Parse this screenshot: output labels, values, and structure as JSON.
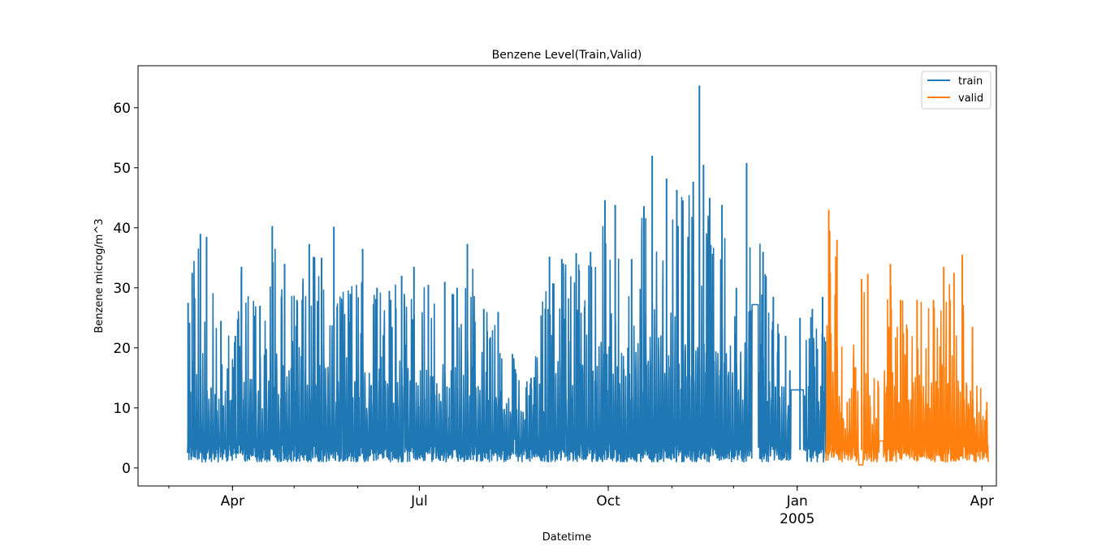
{
  "chart_data": {
    "type": "line",
    "title": "Benzene Level(Train,Valid)",
    "xlabel": "Datetime",
    "ylabel": "Benzene microg/m^3",
    "xlim": [
      "2004-02-15",
      "2005-04-08"
    ],
    "ylim": [
      -3,
      67
    ],
    "y_ticks": [
      0,
      10,
      20,
      30,
      40,
      50,
      60
    ],
    "x_ticks": [
      {
        "date": "2004-04-01",
        "label": "Apr",
        "sub": ""
      },
      {
        "date": "2004-07-01",
        "label": "Jul",
        "sub": ""
      },
      {
        "date": "2004-10-01",
        "label": "Oct",
        "sub": ""
      },
      {
        "date": "2005-01-01",
        "label": "Jan",
        "sub": "2005"
      },
      {
        "date": "2005-04-01",
        "label": "Apr",
        "sub": ""
      }
    ],
    "grid": false,
    "legend": "top-right",
    "series": [
      {
        "name": "train",
        "color": "#1f77b4",
        "start": "2004-03-10",
        "end": "2005-01-15",
        "peaks": [
          [
            "2004-03-10",
            27.5
          ],
          [
            "2004-03-12",
            32.5
          ],
          [
            "2004-03-16",
            39.0
          ],
          [
            "2004-03-19",
            38.5
          ],
          [
            "2004-03-26",
            24.5
          ],
          [
            "2004-04-02",
            22.0
          ],
          [
            "2004-04-05",
            33.5
          ],
          [
            "2004-04-14",
            27.0
          ],
          [
            "2004-04-20",
            40.3
          ],
          [
            "2004-04-26",
            34.0
          ],
          [
            "2004-05-02",
            28.0
          ],
          [
            "2004-05-08",
            37.3
          ],
          [
            "2004-05-14",
            35.0
          ],
          [
            "2004-05-20",
            40.2
          ],
          [
            "2004-05-28",
            29.0
          ],
          [
            "2004-06-03",
            36.5
          ],
          [
            "2004-06-10",
            30.0
          ],
          [
            "2004-06-16",
            29.5
          ],
          [
            "2004-06-22",
            32.0
          ],
          [
            "2004-06-28",
            33.5
          ],
          [
            "2004-07-05",
            30.5
          ],
          [
            "2004-07-13",
            31.0
          ],
          [
            "2004-07-19",
            30.0
          ],
          [
            "2004-07-24",
            37.3
          ],
          [
            "2004-08-01",
            26.5
          ],
          [
            "2004-08-08",
            26.0
          ],
          [
            "2004-08-15",
            19.0
          ],
          [
            "2004-08-24",
            15.0
          ],
          [
            "2004-09-02",
            35.2
          ],
          [
            "2004-09-08",
            34.8
          ],
          [
            "2004-09-15",
            35.8
          ],
          [
            "2004-09-22",
            36.0
          ],
          [
            "2004-09-29",
            44.6
          ],
          [
            "2004-10-04",
            43.8
          ],
          [
            "2004-10-12",
            34.8
          ],
          [
            "2004-10-18",
            43.6
          ],
          [
            "2004-10-22",
            52.0
          ],
          [
            "2004-10-29",
            48.2
          ],
          [
            "2004-11-03",
            46.3
          ],
          [
            "2004-11-11",
            47.7
          ],
          [
            "2004-11-14",
            63.7
          ],
          [
            "2004-11-16",
            50.5
          ],
          [
            "2004-11-19",
            45.0
          ],
          [
            "2004-11-25",
            43.8
          ],
          [
            "2004-12-02",
            30.0
          ],
          [
            "2004-12-07",
            50.8
          ],
          [
            "2004-12-15",
            36.0
          ],
          [
            "2004-12-20",
            28.5
          ],
          [
            "2004-12-26",
            22.0
          ],
          [
            "2005-01-02",
            25.0
          ],
          [
            "2005-01-08",
            26.5
          ],
          [
            "2005-01-13",
            28.5
          ]
        ],
        "gaps": [
          {
            "start": "2004-12-10",
            "end": "2004-12-13",
            "value": 27.2
          },
          {
            "start": "2004-12-29",
            "end": "2005-01-04",
            "value": 13.0
          }
        ]
      },
      {
        "name": "valid",
        "color": "#ff7f0e",
        "start": "2005-01-15",
        "end": "2005-04-04",
        "peaks": [
          [
            "2005-01-16",
            43.0
          ],
          [
            "2005-01-20",
            38.0
          ],
          [
            "2005-01-25",
            11.0
          ],
          [
            "2005-02-01",
            31.5
          ],
          [
            "2005-02-04",
            32.3
          ],
          [
            "2005-02-09",
            14.5
          ],
          [
            "2005-02-15",
            34.0
          ],
          [
            "2005-02-20",
            28.0
          ],
          [
            "2005-02-28",
            28.0
          ],
          [
            "2005-03-08",
            28.0
          ],
          [
            "2005-03-13",
            33.5
          ],
          [
            "2005-03-18",
            32.5
          ],
          [
            "2005-03-22",
            35.5
          ],
          [
            "2005-03-27",
            23.5
          ],
          [
            "2005-04-03",
            11.0
          ]
        ],
        "gaps": [
          {
            "start": "2005-01-31",
            "end": "2005-02-02",
            "value": 0.5
          },
          {
            "start": "2005-02-10",
            "end": "2005-02-12",
            "value": 4.5
          }
        ]
      }
    ]
  }
}
